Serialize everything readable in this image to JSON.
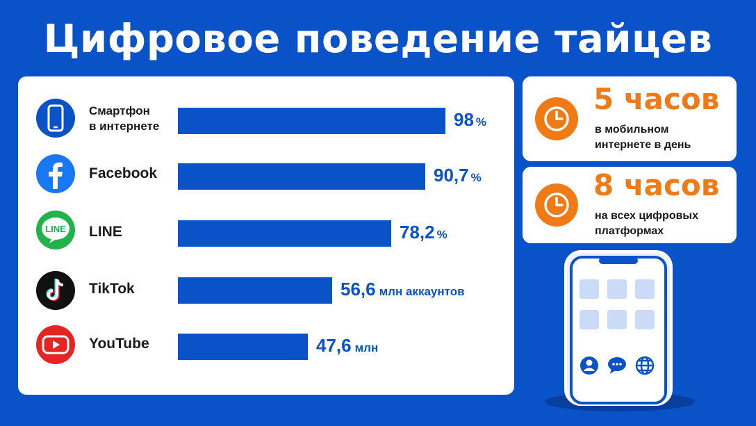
{
  "title": "Цифровое поведение тайцев",
  "colors": {
    "background": "#0a52c8",
    "bar": "#0a52c8",
    "accent": "#f07a16"
  },
  "chart_data": {
    "type": "bar",
    "orientation": "horizontal",
    "title": "Цифровое поведение тайцев",
    "xlim": [
      0,
      100
    ],
    "categories": [
      "Смартфон в интернете",
      "Facebook",
      "LINE",
      "TikTok",
      "YouTube"
    ],
    "series": [
      {
        "values": [
          98,
          90.7,
          78.2,
          56.6,
          47.6
        ],
        "value_labels": [
          {
            "number": "98",
            "unit": "%"
          },
          {
            "number": "90,7",
            "unit": "%"
          },
          {
            "number": "78,2",
            "unit": "%"
          },
          {
            "number": "56,6",
            "unit": "млн аккаунтов"
          },
          {
            "number": "47,6",
            "unit": "млн"
          }
        ]
      }
    ]
  },
  "rows": [
    {
      "label_line1": "Смартфон",
      "label_line2": "в интернете",
      "icon": "smartphone-icon",
      "color": "#0a52c8"
    },
    {
      "label_line1": "Facebook",
      "label_line2": "",
      "icon": "facebook-icon",
      "color": "#1877f2"
    },
    {
      "label_line1": "LINE",
      "label_line2": "",
      "icon": "line-app-icon",
      "color": "#22b24c"
    },
    {
      "label_line1": "TikTok",
      "label_line2": "",
      "icon": "tiktok-icon",
      "color": "#111111"
    },
    {
      "label_line1": "YouTube",
      "label_line2": "",
      "icon": "youtube-icon",
      "color": "#e52521"
    }
  ],
  "cards": [
    {
      "big": "5 часов",
      "line1": "в мобильном",
      "line2": "интернете в день",
      "icon": "clock-icon"
    },
    {
      "big": "8 часов",
      "line1": "на всех цифровых",
      "line2": "платформах",
      "icon": "clock-icon"
    }
  ],
  "phone": {
    "icons": [
      "user-icon",
      "chat-bubble-icon",
      "globe-icon"
    ]
  }
}
